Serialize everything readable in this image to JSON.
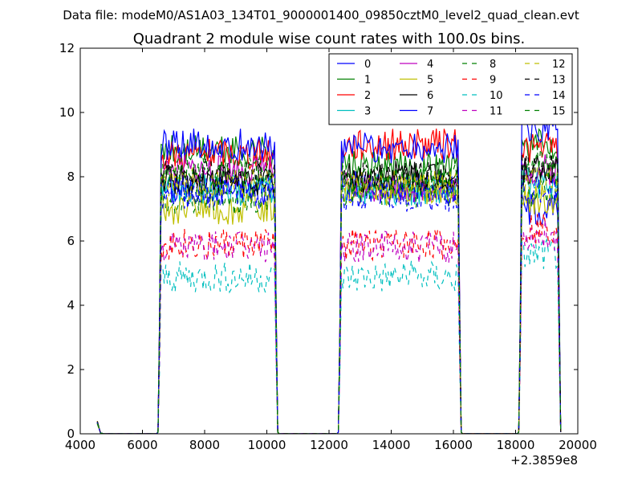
{
  "header": {
    "suptitle": "Data file: modeM0/AS1A03_134T01_9000001400_09850cztM0_level2_quad_clean.evt"
  },
  "chart_data": {
    "type": "line",
    "title": "Quadrant 2 module wise count rates with 100.0s bins.",
    "xlabel": "",
    "ylabel": "",
    "x_offset_label": "+2.3859e8",
    "xlim": [
      4000,
      20000
    ],
    "ylim": [
      0,
      12
    ],
    "x_ticks": [
      "4000",
      "6000",
      "8000",
      "10000",
      "12000",
      "14000",
      "16000",
      "18000",
      "20000"
    ],
    "y_ticks": [
      "0",
      "2",
      "4",
      "6",
      "8",
      "10",
      "12"
    ],
    "grid": false,
    "legend_placement": "top-right",
    "legend_columns": 4,
    "segments": [
      [
        4550,
        4650
      ],
      [
        6550,
        10350
      ],
      [
        12350,
        16250
      ],
      [
        18150,
        19450
      ]
    ],
    "series": [
      {
        "name": "0",
        "color": "#0000ff",
        "dash": "solid",
        "levels": [
          7.6,
          7.7,
          7.0
        ]
      },
      {
        "name": "1",
        "color": "#008000",
        "dash": "solid",
        "levels": [
          8.8,
          8.3,
          9.0
        ]
      },
      {
        "name": "2",
        "color": "#ff0000",
        "dash": "solid",
        "levels": [
          8.7,
          9.0,
          8.9
        ]
      },
      {
        "name": "3",
        "color": "#00bfbf",
        "dash": "solid",
        "levels": [
          7.6,
          7.6,
          7.8
        ]
      },
      {
        "name": "4",
        "color": "#bf00bf",
        "dash": "solid",
        "levels": [
          8.2,
          7.7,
          8.2
        ]
      },
      {
        "name": "5",
        "color": "#bfbf00",
        "dash": "solid",
        "levels": [
          7.0,
          7.6,
          7.3
        ]
      },
      {
        "name": "6",
        "color": "#000000",
        "dash": "solid",
        "levels": [
          7.9,
          8.0,
          8.2
        ]
      },
      {
        "name": "7",
        "color": "#0000ff",
        "dash": "solid",
        "levels": [
          9.0,
          8.9,
          9.5
        ]
      },
      {
        "name": "8",
        "color": "#008000",
        "dash": "dashed",
        "levels": [
          7.3,
          7.5,
          7.5
        ]
      },
      {
        "name": "9",
        "color": "#ff0000",
        "dash": "dashed",
        "levels": [
          5.9,
          5.9,
          6.4
        ]
      },
      {
        "name": "10",
        "color": "#00bfbf",
        "dash": "dashed",
        "levels": [
          4.9,
          4.9,
          5.6
        ]
      },
      {
        "name": "11",
        "color": "#bf00bf",
        "dash": "dashed",
        "levels": [
          5.8,
          5.8,
          6.2
        ]
      },
      {
        "name": "12",
        "color": "#bfbf00",
        "dash": "dashed",
        "levels": [
          7.8,
          7.7,
          7.9
        ]
      },
      {
        "name": "13",
        "color": "#000000",
        "dash": "dashed",
        "levels": [
          8.1,
          8.0,
          8.3
        ]
      },
      {
        "name": "14",
        "color": "#0000ff",
        "dash": "dashed",
        "levels": [
          7.5,
          7.4,
          7.6
        ]
      },
      {
        "name": "15",
        "color": "#008000",
        "dash": "dashed",
        "levels": [
          8.1,
          7.9,
          8.4
        ]
      }
    ]
  }
}
